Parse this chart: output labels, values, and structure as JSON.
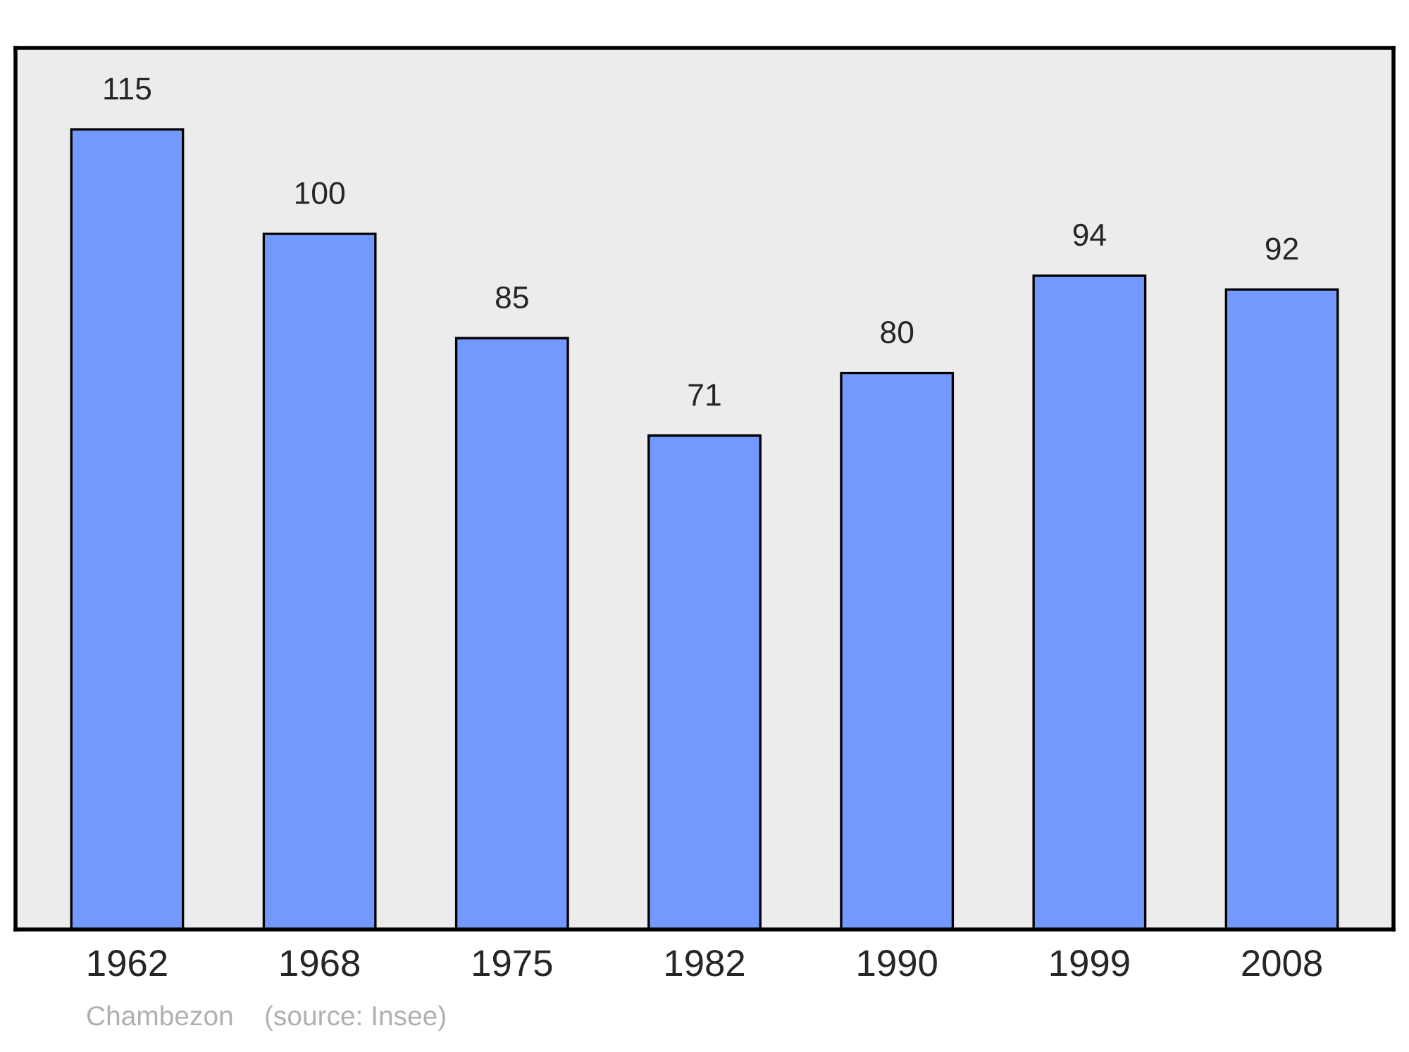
{
  "chart_data": {
    "type": "bar",
    "categories": [
      "1962",
      "1968",
      "1975",
      "1982",
      "1990",
      "1999",
      "2008"
    ],
    "values": [
      115,
      100,
      85,
      71,
      80,
      94,
      92
    ],
    "color": "#7399ff",
    "data_labels": true,
    "grid": false,
    "annotations": [
      "Chambezon    (source: Insee)"
    ]
  }
}
